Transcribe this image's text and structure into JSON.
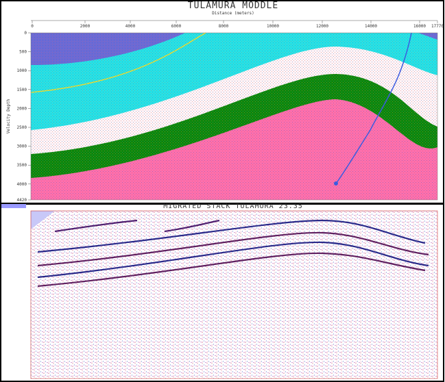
{
  "top_panel": {
    "title": "TULAMURA MODDLE",
    "x_axis_label": "Distance (meters)",
    "x_ticks": [
      "0",
      "2000",
      "4000",
      "6000",
      "8000",
      "10000",
      "12000",
      "14000",
      "16000",
      "17770"
    ],
    "y_axis_label": "Velocity Depth",
    "y_ticks": [
      0,
      500,
      1000,
      1500,
      2000,
      2500,
      3000,
      3500,
      4000,
      4420
    ]
  },
  "bottom_panel": {
    "title": "MIGRATED STACK TULAMURA 23.35"
  }
}
